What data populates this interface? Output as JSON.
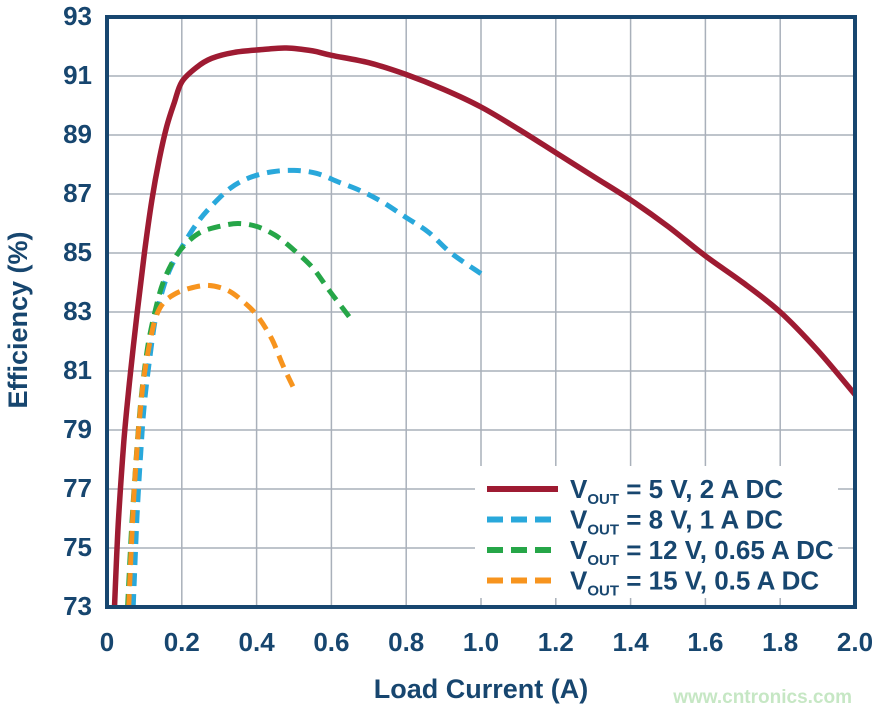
{
  "chart_data": {
    "type": "line",
    "title": "",
    "xlabel": "Load Current (A)",
    "ylabel": "Efficiency (%)",
    "xlim": [
      0,
      2.0
    ],
    "ylim": [
      73,
      93
    ],
    "grid": true,
    "legend_position": "inside-lower-right",
    "x_ticks": {
      "values": [
        0,
        0.2,
        0.4,
        0.6,
        0.8,
        1.0,
        1.2,
        1.4,
        1.6,
        1.8,
        2.0
      ],
      "labels": [
        "0",
        "0.2",
        "0.4",
        "0.6",
        "0.8",
        "1.0",
        "1.2",
        "1.4",
        "1.6",
        "1.8",
        "2.0"
      ]
    },
    "y_ticks": {
      "values": [
        73,
        75,
        77,
        79,
        81,
        83,
        85,
        87,
        89,
        91,
        93
      ],
      "labels": [
        "73",
        "75",
        "77",
        "79",
        "81",
        "83",
        "85",
        "87",
        "89",
        "91",
        "93"
      ]
    },
    "series": [
      {
        "name": "VOUT = 5 V, 2 A DC",
        "label": {
          "prefix": "V",
          "sub": "OUT",
          "rest": " = 5 V, 2 A DC"
        },
        "color": "#9e1b32",
        "style": "solid",
        "points": [
          [
            0.02,
            73
          ],
          [
            0.03,
            75.8
          ],
          [
            0.045,
            78.6
          ],
          [
            0.06,
            80.6
          ],
          [
            0.08,
            82.9
          ],
          [
            0.1,
            85.0
          ],
          [
            0.12,
            86.8
          ],
          [
            0.14,
            88.2
          ],
          [
            0.16,
            89.3
          ],
          [
            0.18,
            90.1
          ],
          [
            0.2,
            90.8
          ],
          [
            0.24,
            91.3
          ],
          [
            0.28,
            91.6
          ],
          [
            0.34,
            91.8
          ],
          [
            0.42,
            91.9
          ],
          [
            0.48,
            91.95
          ],
          [
            0.55,
            91.85
          ],
          [
            0.6,
            91.7
          ],
          [
            0.7,
            91.45
          ],
          [
            0.8,
            91.05
          ],
          [
            0.9,
            90.55
          ],
          [
            1.0,
            89.95
          ],
          [
            1.1,
            89.2
          ],
          [
            1.2,
            88.4
          ],
          [
            1.3,
            87.6
          ],
          [
            1.4,
            86.8
          ],
          [
            1.5,
            85.9
          ],
          [
            1.6,
            84.9
          ],
          [
            1.7,
            84.0
          ],
          [
            1.8,
            83.0
          ],
          [
            1.9,
            81.7
          ],
          [
            2.0,
            80.2
          ]
        ]
      },
      {
        "name": "VOUT = 8 V, 1 A DC",
        "label": {
          "prefix": "V",
          "sub": "OUT",
          "rest": " = 8 V, 1 A DC"
        },
        "color": "#29a8db",
        "style": "dashed",
        "points": [
          [
            0.07,
            73
          ],
          [
            0.08,
            76.0
          ],
          [
            0.09,
            78.2
          ],
          [
            0.1,
            79.9
          ],
          [
            0.115,
            81.5
          ],
          [
            0.13,
            82.8
          ],
          [
            0.15,
            83.8
          ],
          [
            0.17,
            84.5
          ],
          [
            0.2,
            85.2
          ],
          [
            0.24,
            86.0
          ],
          [
            0.28,
            86.6
          ],
          [
            0.33,
            87.2
          ],
          [
            0.38,
            87.55
          ],
          [
            0.44,
            87.75
          ],
          [
            0.5,
            87.8
          ],
          [
            0.56,
            87.7
          ],
          [
            0.62,
            87.4
          ],
          [
            0.68,
            87.1
          ],
          [
            0.74,
            86.7
          ],
          [
            0.8,
            86.2
          ],
          [
            0.86,
            85.7
          ],
          [
            0.92,
            85.0
          ],
          [
            1.0,
            84.3
          ]
        ]
      },
      {
        "name": "VOUT = 12 V, 0.65 A DC",
        "label": {
          "prefix": "V",
          "sub": "OUT",
          "rest": " = 12 V, 0.65 A DC"
        },
        "color": "#26a648",
        "style": "dashed",
        "points": [
          [
            0.055,
            73
          ],
          [
            0.065,
            75.5
          ],
          [
            0.075,
            77.5
          ],
          [
            0.085,
            79.2
          ],
          [
            0.095,
            80.5
          ],
          [
            0.11,
            81.9
          ],
          [
            0.13,
            83.1
          ],
          [
            0.15,
            84.0
          ],
          [
            0.18,
            84.8
          ],
          [
            0.21,
            85.3
          ],
          [
            0.25,
            85.7
          ],
          [
            0.3,
            85.9
          ],
          [
            0.35,
            86.0
          ],
          [
            0.4,
            85.9
          ],
          [
            0.45,
            85.6
          ],
          [
            0.5,
            85.1
          ],
          [
            0.55,
            84.5
          ],
          [
            0.59,
            83.8
          ],
          [
            0.62,
            83.3
          ],
          [
            0.65,
            82.8
          ]
        ]
      },
      {
        "name": "VOUT = 15 V, 0.5 A DC",
        "label": {
          "prefix": "V",
          "sub": "OUT",
          "rest": " = 15 V, 0.5 A DC"
        },
        "color": "#f7941e",
        "style": "dashed",
        "points": [
          [
            0.058,
            73
          ],
          [
            0.065,
            75.0
          ],
          [
            0.072,
            76.8
          ],
          [
            0.08,
            78.3
          ],
          [
            0.09,
            79.8
          ],
          [
            0.1,
            80.9
          ],
          [
            0.115,
            82.0
          ],
          [
            0.13,
            82.8
          ],
          [
            0.15,
            83.3
          ],
          [
            0.18,
            83.6
          ],
          [
            0.22,
            83.8
          ],
          [
            0.27,
            83.9
          ],
          [
            0.32,
            83.75
          ],
          [
            0.36,
            83.4
          ],
          [
            0.4,
            82.9
          ],
          [
            0.44,
            82.1
          ],
          [
            0.47,
            81.2
          ],
          [
            0.5,
            80.4
          ]
        ]
      }
    ]
  },
  "watermark": {
    "text": "www.cntronics.com",
    "color": "#c6e7c4"
  },
  "colors": {
    "axis": "#17466f",
    "labels": "#17466f",
    "grid": "#a9b0ba",
    "background": "#ffffff",
    "legend_background": "#ffffff"
  }
}
